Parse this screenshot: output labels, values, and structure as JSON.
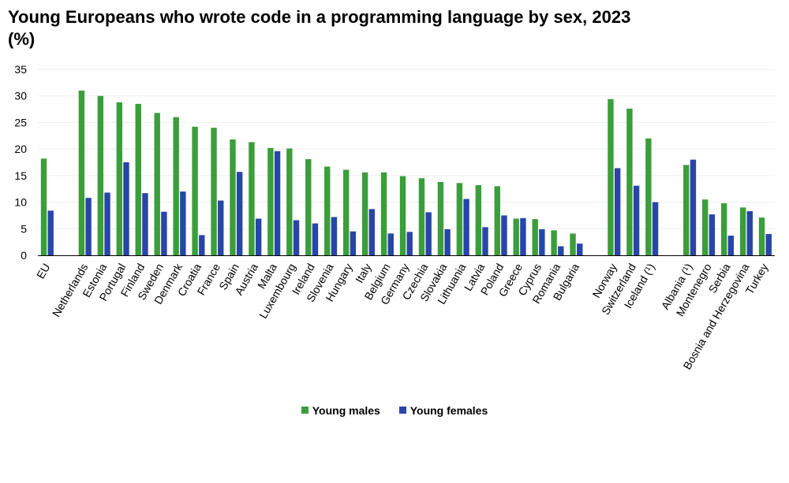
{
  "chart_data": {
    "type": "bar",
    "title": "Young Europeans who wrote code in a programming language by sex, 2023 (%)",
    "xlabel": "",
    "ylabel": "",
    "ylim": [
      0,
      35
    ],
    "yticks": [
      0,
      5,
      10,
      15,
      20,
      25,
      30,
      35
    ],
    "grid": true,
    "legend_position": "bottom",
    "colors": {
      "males": "#3a9e3a",
      "females": "#2845a8"
    },
    "groups": [
      {
        "categories": [
          "EU"
        ],
        "males": [
          18.2
        ],
        "females": [
          8.4
        ]
      },
      {
        "categories": [
          "Netherlands",
          "Estonia",
          "Portugal",
          "Finland",
          "Sweden",
          "Denmark",
          "Croatia",
          "France",
          "Spain",
          "Austria",
          "Malta",
          "Luxembourg",
          "Ireland",
          "Slovenia",
          "Hungary",
          "Italy",
          "Belgium",
          "Germany",
          "Czechia",
          "Slovakia",
          "Lithuania",
          "Latvia",
          "Poland",
          "Greece",
          "Cyprus",
          "Romania",
          "Bulgaria"
        ],
        "males": [
          31.0,
          30.0,
          28.8,
          28.5,
          26.8,
          26.0,
          24.2,
          24.0,
          21.8,
          21.3,
          20.2,
          20.1,
          18.1,
          16.7,
          16.1,
          15.6,
          15.6,
          14.9,
          14.5,
          13.8,
          13.6,
          13.2,
          13.0,
          6.9,
          6.8,
          4.7,
          4.1
        ],
        "females": [
          10.8,
          11.8,
          17.5,
          11.7,
          8.2,
          12.0,
          3.8,
          10.3,
          15.7,
          6.9,
          19.6,
          6.6,
          6.0,
          7.2,
          4.5,
          8.7,
          4.1,
          4.4,
          8.1,
          4.9,
          10.6,
          5.3,
          7.5,
          7.0,
          4.9,
          1.7,
          2.2
        ]
      },
      {
        "categories": [
          "Norway",
          "Switzerland",
          "Iceland (¹)"
        ],
        "males": [
          29.4,
          27.6,
          22.0
        ],
        "females": [
          16.4,
          13.1,
          10.0
        ]
      },
      {
        "categories": [
          "Albania (¹)",
          "Montenegro",
          "Serbia",
          "Bosnia and Herzegovina",
          "Turkey"
        ],
        "males": [
          17.0,
          10.5,
          9.8,
          9.0,
          7.1
        ],
        "females": [
          18.0,
          7.7,
          3.7,
          8.3,
          4.0
        ]
      }
    ],
    "series": [
      {
        "name": "Young males"
      },
      {
        "name": "Young females"
      }
    ]
  }
}
